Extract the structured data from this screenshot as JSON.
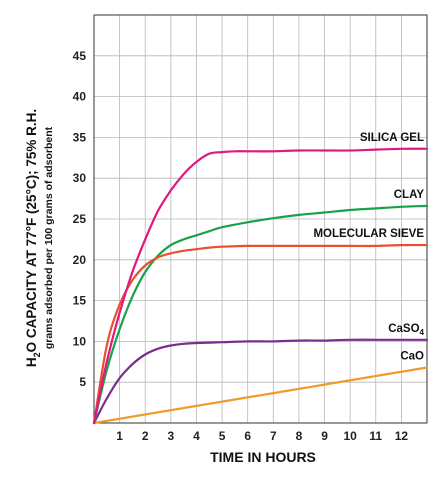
{
  "chart_data": {
    "type": "line",
    "title": "",
    "xlabel": "TIME IN HOURS",
    "ylabel_parts": {
      "h": "H",
      "sub2": "2",
      "rest": "O CAPACITY AT 77°F (25°C); 75% R.H."
    },
    "ylabel_sub": "grams adsorbed per 100 grams of adsorbent",
    "xlim": [
      0,
      13
    ],
    "ylim": [
      0,
      50
    ],
    "x_ticks": [
      "1",
      "2",
      "3",
      "4",
      "5",
      "6",
      "7",
      "8",
      "9",
      "10",
      "11",
      "12"
    ],
    "y_ticks": [
      "5",
      "10",
      "15",
      "20",
      "25",
      "30",
      "35",
      "40",
      "45"
    ],
    "grid": true,
    "series": [
      {
        "name": "SILICA GEL",
        "color": "#e0197d",
        "x": [
          0,
          0.5,
          1,
          1.5,
          2,
          2.5,
          3,
          3.5,
          4,
          4.5,
          5,
          5.5,
          6,
          7,
          8,
          9,
          10,
          11,
          12,
          13
        ],
        "y": [
          0,
          7.5,
          13.5,
          18.5,
          22.5,
          26,
          28.5,
          30.5,
          32,
          33,
          33.2,
          33.3,
          33.3,
          33.3,
          33.4,
          33.4,
          33.4,
          33.5,
          33.6,
          33.6
        ]
      },
      {
        "name": "CLAY",
        "color": "#18a24b",
        "x": [
          0,
          0.5,
          1,
          1.5,
          2,
          2.5,
          3,
          3.5,
          4,
          4.5,
          5,
          6,
          7,
          8,
          9,
          10,
          11,
          12,
          13
        ],
        "y": [
          0,
          6.5,
          11.5,
          15.5,
          18.5,
          20.5,
          21.8,
          22.5,
          23,
          23.5,
          24,
          24.6,
          25.1,
          25.5,
          25.8,
          26.1,
          26.3,
          26.5,
          26.6
        ]
      },
      {
        "name": "MOLECULAR SIEVE",
        "color": "#e8502f",
        "x": [
          0,
          0.5,
          1,
          1.5,
          2,
          2.5,
          3,
          3.5,
          4,
          4.5,
          5,
          6,
          7,
          8,
          9,
          10,
          11,
          12,
          13
        ],
        "y": [
          0,
          9.5,
          14.5,
          17.5,
          19.3,
          20.3,
          20.8,
          21.1,
          21.3,
          21.5,
          21.6,
          21.7,
          21.7,
          21.7,
          21.7,
          21.7,
          21.7,
          21.8,
          21.8
        ]
      },
      {
        "name": "CaSO",
        "name_sub": "4",
        "color": "#7b2c8f",
        "x": [
          0,
          0.5,
          1,
          1.5,
          2,
          2.5,
          3,
          3.5,
          4,
          5,
          6,
          7,
          8,
          9,
          10,
          11,
          12,
          13
        ],
        "y": [
          0,
          3,
          5.5,
          7.2,
          8.4,
          9.1,
          9.5,
          9.7,
          9.8,
          9.9,
          10.0,
          10.0,
          10.1,
          10.1,
          10.2,
          10.2,
          10.2,
          10.2
        ]
      },
      {
        "name": "CaO",
        "color": "#f19a2b",
        "x": [
          0,
          13
        ],
        "y": [
          0,
          6.8
        ]
      }
    ]
  }
}
